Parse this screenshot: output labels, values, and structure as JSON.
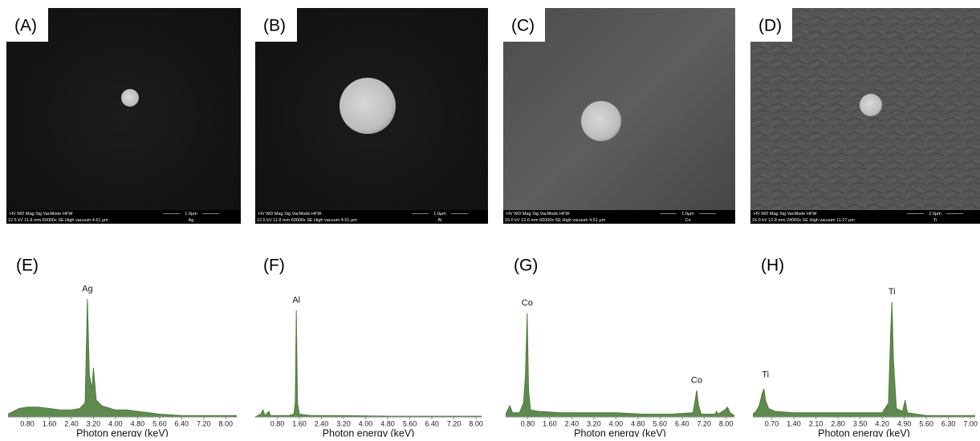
{
  "images": [
    {
      "label": "(A)",
      "header": "HV     WD     Mag   Sig  VacMode   HFW",
      "values": "12.5 kV 11.8 mm 60000x SE High vacuum 4.51 µm",
      "scale": "1.0µm",
      "sample": "Ag"
    },
    {
      "label": "(B)",
      "header": "HV     WD     Mag   Sig  VacMode   HFW",
      "values": "12.5 kV 11.8 mm 60000x SE High vacuum 4.51 µm",
      "scale": "1.0µm",
      "sample": "Al"
    },
    {
      "label": "(C)",
      "header": "HV     WD     Mag   Sig  VacMode   HFW",
      "values": "15.0 kV 12.6 mm 60000x SE High vacuum 4.51 µm",
      "scale": "1.0µm",
      "sample": "Co"
    },
    {
      "label": "(D)",
      "header": "HV     WD     Mag   Sig  VacMode   HFW",
      "values": "15.0 kV 12.8 mm 24000x SE High vacuum 11.27 µm",
      "scale": "2.0µm",
      "sample": "Ti"
    }
  ],
  "chart_data": [
    {
      "type": "area",
      "title": "(E)",
      "x_label": "Photon energy (keV)",
      "color": "#4e7d3c",
      "x": [
        0.1,
        0.3,
        0.5,
        0.8,
        1.2,
        1.6,
        2.0,
        2.4,
        2.7,
        2.9,
        2.98,
        3.05,
        3.15,
        3.2,
        3.3,
        3.5,
        4.0,
        4.4,
        4.8,
        5.6,
        6.4,
        7.2,
        8.0,
        8.4
      ],
      "values": [
        2,
        4,
        6,
        7,
        7,
        6,
        5,
        5,
        6,
        10,
        84,
        30,
        20,
        35,
        12,
        8,
        5,
        5,
        4,
        2,
        1,
        1,
        1,
        1
      ],
      "xlim": [
        0.1,
        8.4
      ],
      "ylim": [
        0,
        100
      ],
      "xticks": [
        {
          "value": 0.8,
          "label": "0.80"
        },
        {
          "value": 1.6,
          "label": "1.60"
        },
        {
          "value": 2.4,
          "label": "2.40"
        },
        {
          "value": 3.2,
          "label": "3.20"
        },
        {
          "value": 4.0,
          "label": "4.00"
        },
        {
          "value": 4.8,
          "label": "4.80"
        },
        {
          "value": 5.6,
          "label": "5.60"
        },
        {
          "value": 6.4,
          "label": "6.40"
        },
        {
          "value": 7.2,
          "label": "7.20"
        },
        {
          "value": 8.0,
          "label": "8.00"
        }
      ],
      "annotations": [
        {
          "text": "Ag",
          "x": 2.98,
          "y": 91
        }
      ]
    },
    {
      "type": "area",
      "title": "(F)",
      "x_label": "Photon energy (keV)",
      "color": "#4e7d3c",
      "x": [
        0,
        0.2,
        0.28,
        0.35,
        0.5,
        0.55,
        0.8,
        1.2,
        1.4,
        1.45,
        1.49,
        1.53,
        1.6,
        2.0,
        3.0,
        5.0,
        8.2
      ],
      "values": [
        0,
        2,
        5,
        1,
        4,
        1,
        1,
        1,
        2,
        10,
        76,
        10,
        2,
        1,
        1,
        0.5,
        0.5
      ],
      "xlim": [
        0,
        8.2
      ],
      "ylim": [
        0,
        100
      ],
      "xticks": [
        {
          "value": 0.8,
          "label": "0.80"
        },
        {
          "value": 1.6,
          "label": "1.60"
        },
        {
          "value": 2.4,
          "label": "2.40"
        },
        {
          "value": 3.2,
          "label": "3.20"
        },
        {
          "value": 4.0,
          "label": "4.00"
        },
        {
          "value": 4.8,
          "label": "4.80"
        },
        {
          "value": 5.6,
          "label": "5.60"
        },
        {
          "value": 6.4,
          "label": "6.40"
        },
        {
          "value": 7.2,
          "label": "7.20"
        },
        {
          "value": 8.0,
          "label": "8.00"
        }
      ],
      "annotations": [
        {
          "text": "Al",
          "x": 1.49,
          "y": 83
        }
      ]
    },
    {
      "type": "area",
      "title": "(G)",
      "x_label": "Photon energy (keV)",
      "color": "#4e7d3c",
      "x": [
        0,
        0.15,
        0.25,
        0.5,
        0.65,
        0.72,
        0.78,
        0.83,
        0.9,
        1.2,
        2.0,
        3.0,
        4.0,
        5.0,
        6.0,
        6.8,
        6.88,
        6.93,
        7.0,
        7.1,
        7.6,
        7.65,
        7.7,
        7.95,
        8.05,
        8.15,
        8.3
      ],
      "values": [
        2,
        8,
        3,
        3,
        10,
        30,
        74,
        20,
        5,
        4,
        3,
        3,
        3,
        2,
        2,
        3,
        12,
        19,
        8,
        2,
        2,
        4,
        2,
        5,
        7,
        3,
        1
      ],
      "xlim": [
        0,
        8.3
      ],
      "ylim": [
        0,
        100
      ],
      "xticks": [
        {
          "value": 0.8,
          "label": "0.80"
        },
        {
          "value": 1.6,
          "label": "1.60"
        },
        {
          "value": 2.4,
          "label": "2.40"
        },
        {
          "value": 3.2,
          "label": "3.20"
        },
        {
          "value": 4.0,
          "label": "4.00"
        },
        {
          "value": 4.8,
          "label": "4.80"
        },
        {
          "value": 5.6,
          "label": "5.60"
        },
        {
          "value": 6.4,
          "label": "6.40"
        },
        {
          "value": 7.2,
          "label": "7.20"
        },
        {
          "value": 8.0,
          "label": "8.00"
        }
      ],
      "annotations": [
        {
          "text": "Co",
          "x": 0.78,
          "y": 81
        },
        {
          "text": "Co",
          "x": 6.93,
          "y": 26
        }
      ]
    },
    {
      "type": "area",
      "title": "(H)",
      "x_label": "Photon energy (keV)",
      "color": "#4e7d3c",
      "x": [
        0.1,
        0.2,
        0.3,
        0.4,
        0.45,
        0.5,
        0.6,
        0.8,
        1.4,
        2.8,
        4.2,
        4.4,
        4.47,
        4.51,
        4.56,
        4.65,
        4.85,
        4.93,
        5.0,
        5.6,
        7.15
      ],
      "values": [
        2,
        4,
        8,
        17,
        20,
        12,
        6,
        4,
        3,
        3,
        3,
        10,
        60,
        82,
        40,
        6,
        4,
        12,
        3,
        1,
        1
      ],
      "xlim": [
        0.1,
        7.15
      ],
      "ylim": [
        0,
        100
      ],
      "xticks": [
        {
          "value": 0.7,
          "label": "0.70"
        },
        {
          "value": 1.4,
          "label": "1.40"
        },
        {
          "value": 2.1,
          "label": "2.10"
        },
        {
          "value": 2.8,
          "label": "2.80"
        },
        {
          "value": 3.5,
          "label": "3.50"
        },
        {
          "value": 4.2,
          "label": "4.20"
        },
        {
          "value": 4.9,
          "label": "4.90"
        },
        {
          "value": 5.6,
          "label": "5.60"
        },
        {
          "value": 6.3,
          "label": "6.30"
        },
        {
          "value": 7.0,
          "label": "7.00"
        }
      ],
      "annotations": [
        {
          "text": "Ti",
          "x": 0.5,
          "y": 30
        },
        {
          "text": "Ti",
          "x": 4.51,
          "y": 89
        }
      ]
    }
  ]
}
